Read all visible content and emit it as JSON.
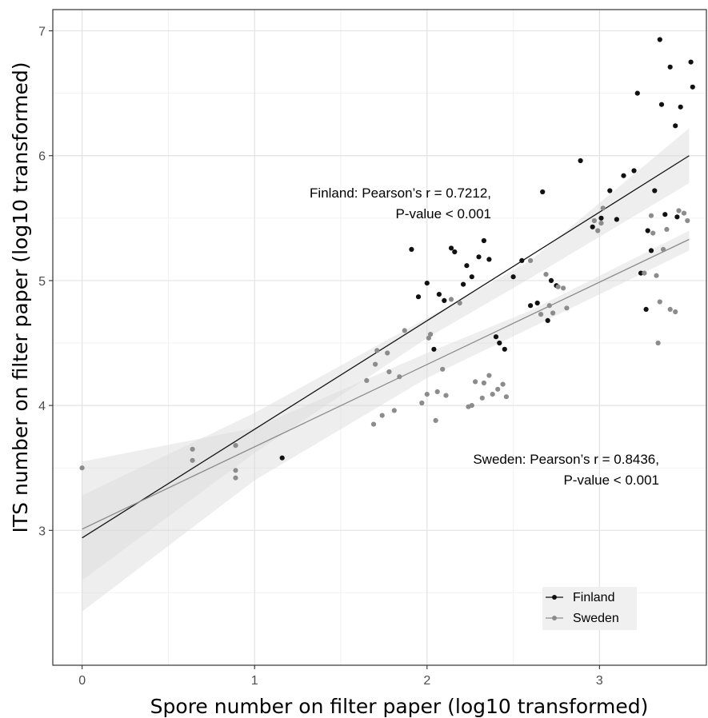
{
  "chart_data": {
    "type": "scatter",
    "xlabel": "Spore number on filter paper (log10 transformed)",
    "ylabel": "ITS number on filter paper (log10 transformed)",
    "xlim": [
      -0.17,
      3.62
    ],
    "ylim": [
      1.92,
      7.17
    ],
    "x_ticks": [
      "0",
      "1",
      "2",
      "3"
    ],
    "y_ticks": [
      "3",
      "4",
      "5",
      "6",
      "7"
    ],
    "x_tick_values": [
      0,
      1,
      2,
      3
    ],
    "y_tick_values": [
      3,
      4,
      5,
      6,
      7
    ],
    "grid": true,
    "legend_position": "bottom-right",
    "series": [
      {
        "name": "Finland",
        "color": "#111111",
        "line_color": "#111111",
        "fit": {
          "x": [
            0,
            3.52
          ],
          "y": [
            2.94,
            6.0
          ]
        },
        "ci_upper": [
          [
            0,
            3.28
          ],
          [
            1.0,
            3.94
          ],
          [
            2.0,
            4.7
          ],
          [
            2.6,
            5.16
          ],
          [
            3.52,
            6.22
          ]
        ],
        "ci_lower": [
          [
            3.52,
            5.78
          ],
          [
            2.6,
            5.02
          ],
          [
            2.0,
            4.54
          ],
          [
            1.0,
            3.62
          ],
          [
            0,
            2.6
          ]
        ],
        "points": [
          [
            1.16,
            3.58
          ],
          [
            1.91,
            5.25
          ],
          [
            1.95,
            4.87
          ],
          [
            2.0,
            4.98
          ],
          [
            2.04,
            4.45
          ],
          [
            2.07,
            4.89
          ],
          [
            2.1,
            4.84
          ],
          [
            2.14,
            5.26
          ],
          [
            2.16,
            5.23
          ],
          [
            2.21,
            4.97
          ],
          [
            2.23,
            5.12
          ],
          [
            2.26,
            5.03
          ],
          [
            2.3,
            5.19
          ],
          [
            2.33,
            5.32
          ],
          [
            2.36,
            5.17
          ],
          [
            2.4,
            4.55
          ],
          [
            2.42,
            4.5
          ],
          [
            2.45,
            4.45
          ],
          [
            2.5,
            5.03
          ],
          [
            2.55,
            5.16
          ],
          [
            2.6,
            4.8
          ],
          [
            2.64,
            4.82
          ],
          [
            2.67,
            5.71
          ],
          [
            2.7,
            4.68
          ],
          [
            2.72,
            5.0
          ],
          [
            2.75,
            4.96
          ],
          [
            2.89,
            5.96
          ],
          [
            2.96,
            5.43
          ],
          [
            3.01,
            5.5
          ],
          [
            3.06,
            5.72
          ],
          [
            3.1,
            5.49
          ],
          [
            3.14,
            5.84
          ],
          [
            3.2,
            5.88
          ],
          [
            3.22,
            6.5
          ],
          [
            3.24,
            5.06
          ],
          [
            3.27,
            4.77
          ],
          [
            3.28,
            5.4
          ],
          [
            3.3,
            5.24
          ],
          [
            3.32,
            5.72
          ],
          [
            3.35,
            6.93
          ],
          [
            3.36,
            6.41
          ],
          [
            3.38,
            5.53
          ],
          [
            3.41,
            6.71
          ],
          [
            3.44,
            6.24
          ],
          [
            3.45,
            5.51
          ],
          [
            3.47,
            6.39
          ],
          [
            3.53,
            6.75
          ],
          [
            3.54,
            6.55
          ]
        ]
      },
      {
        "name": "Sweden",
        "color": "#8c8c8c",
        "line_color": "#8c8c8c",
        "fit": {
          "x": [
            0,
            3.52
          ],
          "y": [
            3.01,
            5.33
          ]
        },
        "ci_upper": [
          [
            0,
            3.55
          ],
          [
            1.0,
            3.82
          ],
          [
            2.0,
            4.42
          ],
          [
            2.6,
            4.76
          ],
          [
            3.52,
            5.4
          ]
        ],
        "ci_lower": [
          [
            3.52,
            5.24
          ],
          [
            2.6,
            4.62
          ],
          [
            2.0,
            4.22
          ],
          [
            1.0,
            3.4
          ],
          [
            0,
            2.35
          ]
        ],
        "points": [
          [
            0.0,
            3.5
          ],
          [
            0.64,
            3.65
          ],
          [
            0.64,
            3.56
          ],
          [
            0.89,
            3.68
          ],
          [
            0.89,
            3.48
          ],
          [
            0.89,
            3.42
          ],
          [
            1.65,
            4.2
          ],
          [
            1.69,
            3.85
          ],
          [
            1.7,
            4.33
          ],
          [
            1.71,
            4.44
          ],
          [
            1.74,
            3.92
          ],
          [
            1.77,
            4.42
          ],
          [
            1.78,
            4.27
          ],
          [
            1.81,
            3.96
          ],
          [
            1.84,
            4.23
          ],
          [
            1.87,
            4.6
          ],
          [
            1.97,
            4.02
          ],
          [
            2.0,
            4.09
          ],
          [
            2.01,
            4.54
          ],
          [
            2.02,
            4.57
          ],
          [
            2.05,
            3.88
          ],
          [
            2.06,
            4.11
          ],
          [
            2.09,
            4.29
          ],
          [
            2.11,
            4.08
          ],
          [
            2.14,
            4.85
          ],
          [
            2.19,
            4.82
          ],
          [
            2.24,
            3.99
          ],
          [
            2.26,
            4.0
          ],
          [
            2.28,
            4.19
          ],
          [
            2.32,
            4.06
          ],
          [
            2.33,
            4.18
          ],
          [
            2.36,
            4.24
          ],
          [
            2.38,
            4.09
          ],
          [
            2.41,
            4.13
          ],
          [
            2.44,
            4.17
          ],
          [
            2.46,
            4.07
          ],
          [
            2.6,
            5.16
          ],
          [
            2.66,
            4.73
          ],
          [
            2.69,
            5.05
          ],
          [
            2.71,
            4.8
          ],
          [
            2.73,
            4.74
          ],
          [
            2.76,
            4.95
          ],
          [
            2.79,
            4.94
          ],
          [
            2.81,
            4.78
          ],
          [
            2.97,
            5.48
          ],
          [
            2.99,
            5.4
          ],
          [
            3.01,
            5.46
          ],
          [
            3.02,
            5.58
          ],
          [
            3.26,
            5.06
          ],
          [
            3.3,
            5.52
          ],
          [
            3.31,
            5.38
          ],
          [
            3.33,
            5.04
          ],
          [
            3.34,
            4.5
          ],
          [
            3.35,
            4.83
          ],
          [
            3.37,
            5.25
          ],
          [
            3.39,
            5.41
          ],
          [
            3.41,
            4.77
          ],
          [
            3.44,
            4.75
          ],
          [
            3.46,
            5.56
          ],
          [
            3.49,
            5.54
          ],
          [
            3.51,
            5.48
          ]
        ]
      }
    ],
    "annotations": [
      {
        "series": "Finland",
        "lines": [
          "Finland: Pearson’s r = 0.7212,",
          "P-value < 0.001"
        ]
      },
      {
        "series": "Sweden",
        "lines": [
          "Sweden: Pearson’s r = 0.8436,",
          "P-value < 0.001"
        ]
      }
    ],
    "legend_panel_color": "#f0f0f0",
    "ci_color": "#d9d9d9"
  }
}
